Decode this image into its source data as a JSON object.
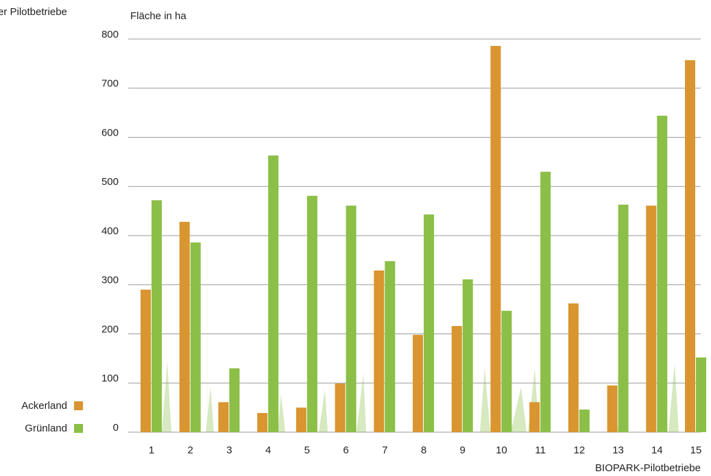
{
  "chart_data": {
    "type": "bar",
    "corner_text": "er Pilotbetriebe",
    "y_label": "Fläche in ha",
    "x_label": "BIOPARK-Pilotbetriebe",
    "categories": [
      "1",
      "2",
      "3",
      "4",
      "5",
      "6",
      "7",
      "8",
      "9",
      "10",
      "11",
      "12",
      "13",
      "14",
      "15"
    ],
    "series": [
      {
        "name": "Ackerland",
        "color": "#d9952f",
        "values": [
          290,
          428,
          61,
          39,
          50,
          99,
          329,
          198,
          216,
          786,
          61,
          262,
          95,
          461,
          757
        ]
      },
      {
        "name": "Grünland",
        "color": "#8bbf47",
        "values": [
          472,
          386,
          130,
          563,
          481,
          461,
          348,
          443,
          311,
          247,
          530,
          46,
          463,
          644,
          152
        ]
      }
    ],
    "ylim": [
      0,
      800
    ],
    "yticks": [
      0,
      100,
      200,
      300,
      400,
      500,
      600,
      700,
      800
    ],
    "grid": true,
    "legend": "bottom-left"
  }
}
